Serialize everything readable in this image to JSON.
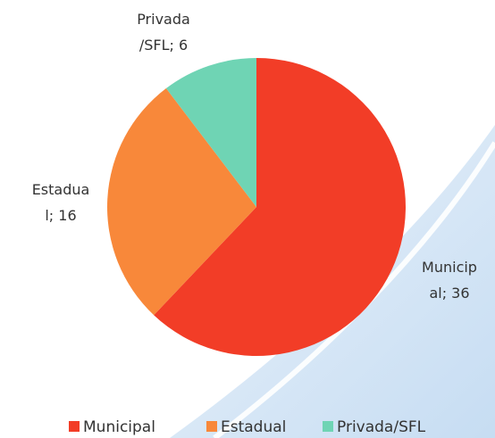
{
  "chart_data": {
    "type": "pie",
    "categories": [
      "Municipal",
      "Estadual",
      "Privada/SFL"
    ],
    "values": [
      36,
      16,
      6
    ],
    "value_labels": [
      "Municipal; 36",
      "Estadual; 16",
      "Privada/SFL; 6"
    ],
    "colors": [
      "#f23d27",
      "#f8883a",
      "#6fd4b4"
    ],
    "legend": "bottom"
  }
}
